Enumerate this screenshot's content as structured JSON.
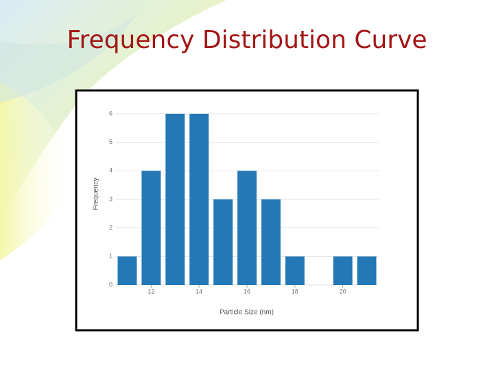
{
  "chart_data": {
    "type": "histogram",
    "title": "Frequency Distribution Curve",
    "x_label": "Particle Size (nm)",
    "y_label": "Frequency",
    "bins": [
      10.5,
      11.5,
      12.5,
      13.5,
      14.5,
      15.5,
      16.5,
      17.5,
      18.5,
      19.5,
      20.5,
      21.5
    ],
    "values": [
      1,
      4,
      6,
      6,
      3,
      4,
      3,
      1,
      0,
      1,
      1
    ],
    "color": "#2378b5",
    "xlim": [
      10.5,
      21.5
    ],
    "xticks": [
      12,
      14,
      16,
      18,
      20
    ],
    "ylim": [
      0,
      6
    ],
    "yticks": [
      0,
      1,
      2,
      3,
      4,
      5,
      6
    ],
    "grid": true
  }
}
